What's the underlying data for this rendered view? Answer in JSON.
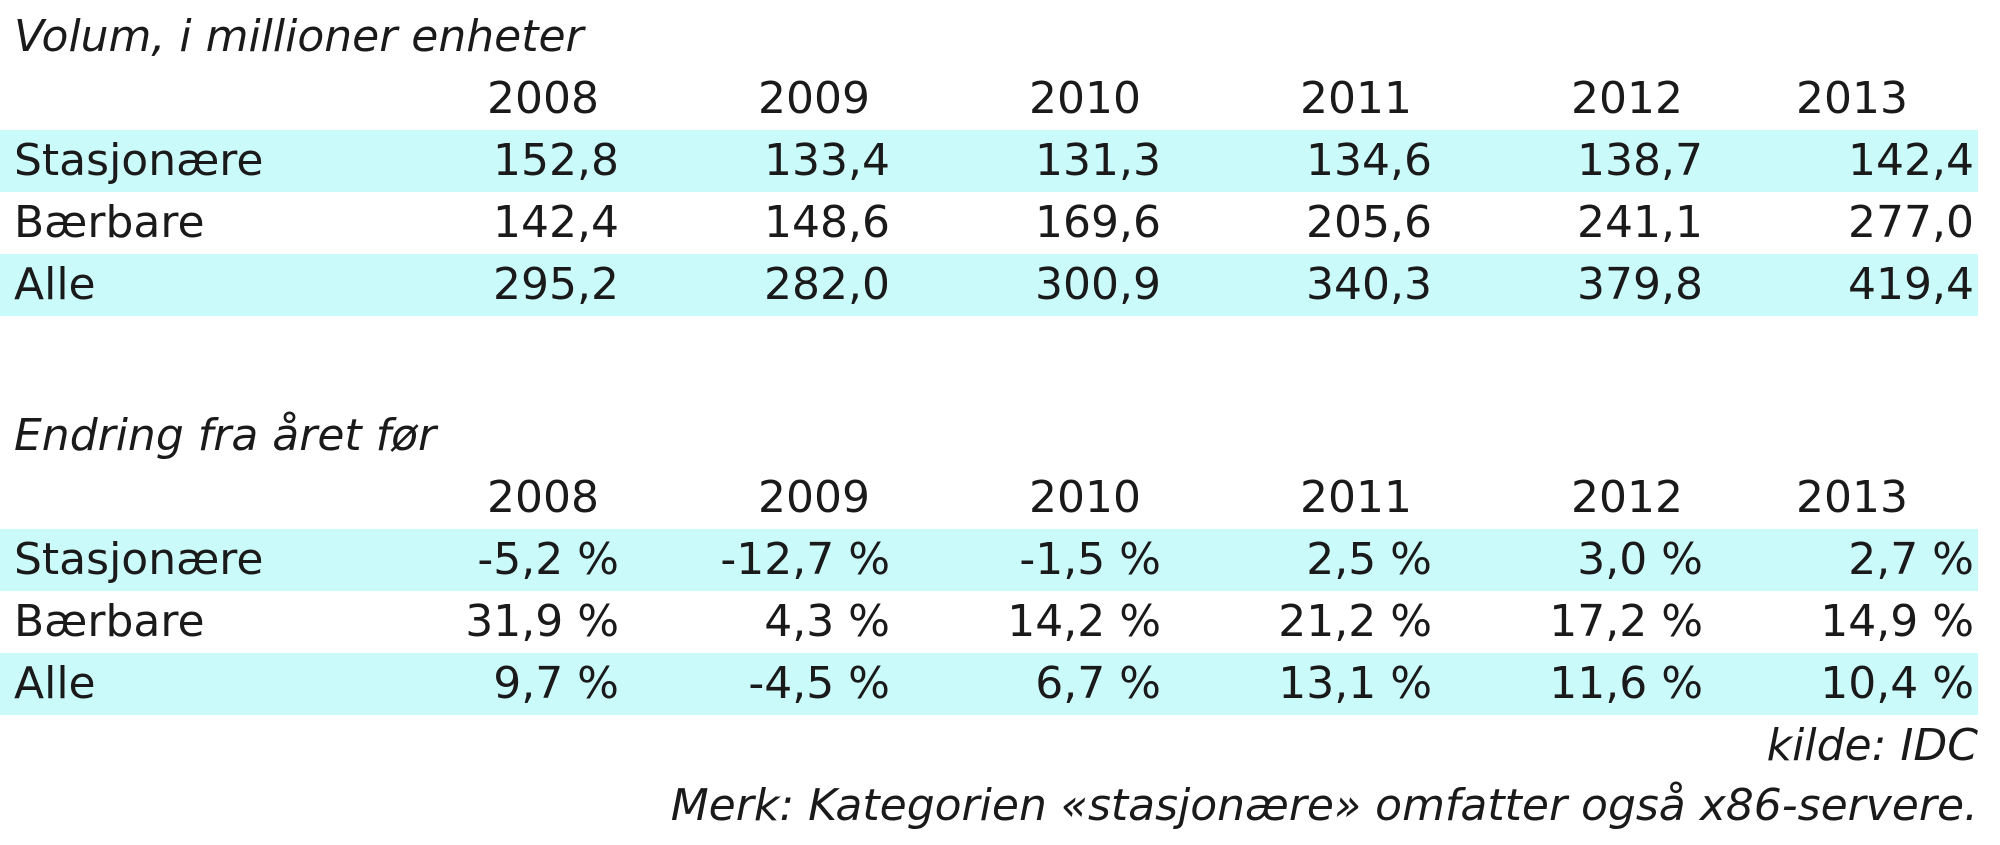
{
  "volume_table": {
    "title": "Volum, i millioner enheter",
    "years": [
      "2008",
      "2009",
      "2010",
      "2011",
      "2012",
      "2013"
    ],
    "rows": [
      {
        "label": "Stasjonære",
        "values": [
          "152,8",
          "133,4",
          "131,3",
          "134,6",
          "138,7",
          "142,4"
        ]
      },
      {
        "label": "Bærbare",
        "values": [
          "142,4",
          "148,6",
          "169,6",
          "205,6",
          "241,1",
          "277,0"
        ]
      },
      {
        "label": "Alle",
        "values": [
          "295,2",
          "282,0",
          "300,9",
          "340,3",
          "379,8",
          "419,4"
        ]
      }
    ]
  },
  "change_table": {
    "title": "Endring fra året før",
    "years": [
      "2008",
      "2009",
      "2010",
      "2011",
      "2012",
      "2013"
    ],
    "rows": [
      {
        "label": "Stasjonære",
        "values": [
          "-5,2 %",
          "-12,7 %",
          "-1,5 %",
          "2,5 %",
          "3,0 %",
          "2,7 %"
        ]
      },
      {
        "label": "Bærbare",
        "values": [
          "31,9 %",
          "4,3 %",
          "14,2 %",
          "21,2 %",
          "17,2 %",
          "14,9 %"
        ]
      },
      {
        "label": "Alle",
        "values": [
          "9,7 %",
          "-4,5 %",
          "6,7 %",
          "13,1 %",
          "11,6 %",
          "10,4 %"
        ]
      }
    ]
  },
  "footer": {
    "source": "kilde: IDC",
    "note": "Merk: Kategorien «stasjonære» omfatter også x86-servere."
  },
  "colors": {
    "row_highlight": "#cbfafa",
    "text": "#1a1a1a"
  }
}
